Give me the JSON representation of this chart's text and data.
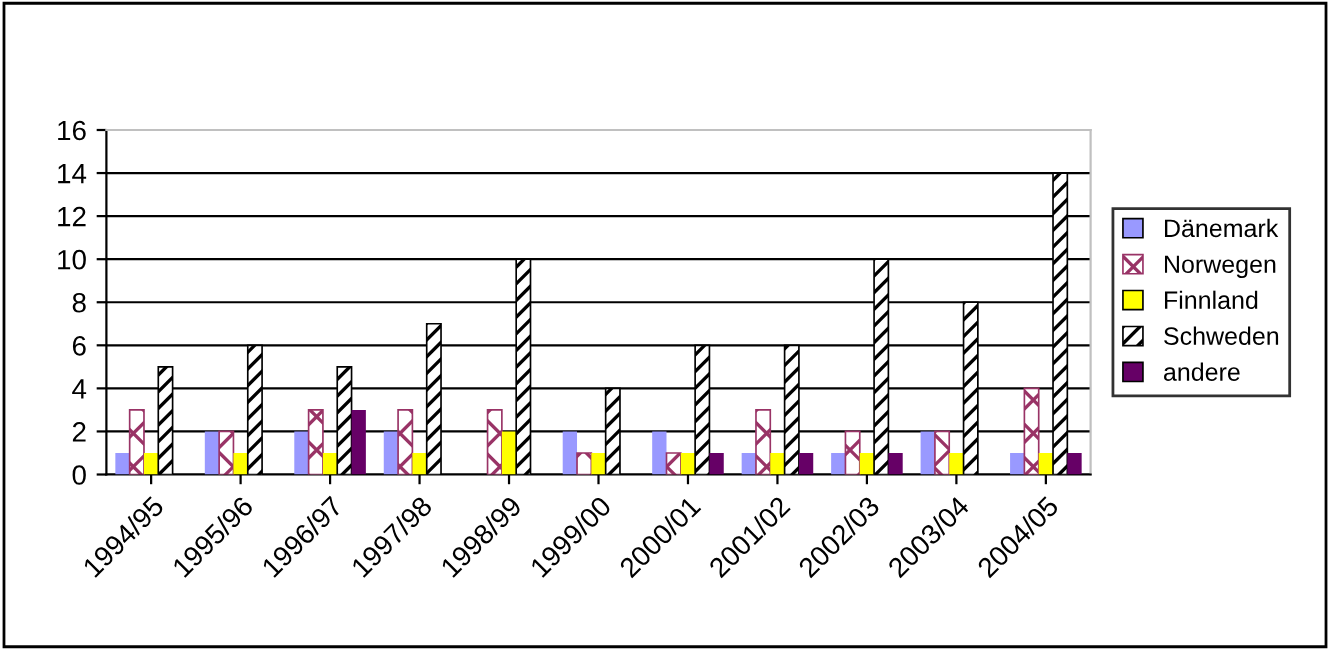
{
  "chart_data": {
    "type": "bar",
    "categories": [
      "1994/95",
      "1995/96",
      "1996/97",
      "1997/98",
      "1998/99",
      "1999/00",
      "2000/01",
      "2001/02",
      "2002/03",
      "2003/04",
      "2004/05"
    ],
    "series": [
      {
        "name": "Dänemark",
        "color": "#9999ff",
        "values": [
          1,
          2,
          2,
          2,
          0,
          2,
          2,
          1,
          1,
          2,
          1
        ]
      },
      {
        "name": "Norwegen",
        "color": "#993366",
        "values": [
          3,
          2,
          3,
          3,
          3,
          1,
          1,
          3,
          2,
          2,
          4
        ]
      },
      {
        "name": "Finnland",
        "color": "#ffff00",
        "values": [
          1,
          1,
          1,
          1,
          2,
          1,
          1,
          1,
          1,
          1,
          1
        ]
      },
      {
        "name": "Schweden",
        "color": "#000000",
        "values": [
          5,
          6,
          5,
          7,
          10,
          4,
          6,
          6,
          10,
          8,
          14
        ]
      },
      {
        "name": "andere",
        "color": "#660066",
        "values": [
          0,
          0,
          3,
          0,
          0,
          0,
          1,
          1,
          1,
          0,
          1
        ]
      }
    ],
    "ylim": [
      0,
      16
    ],
    "yticks": [
      0,
      2,
      4,
      6,
      8,
      10,
      12,
      14,
      16
    ],
    "grid": "y",
    "legend": "right"
  }
}
